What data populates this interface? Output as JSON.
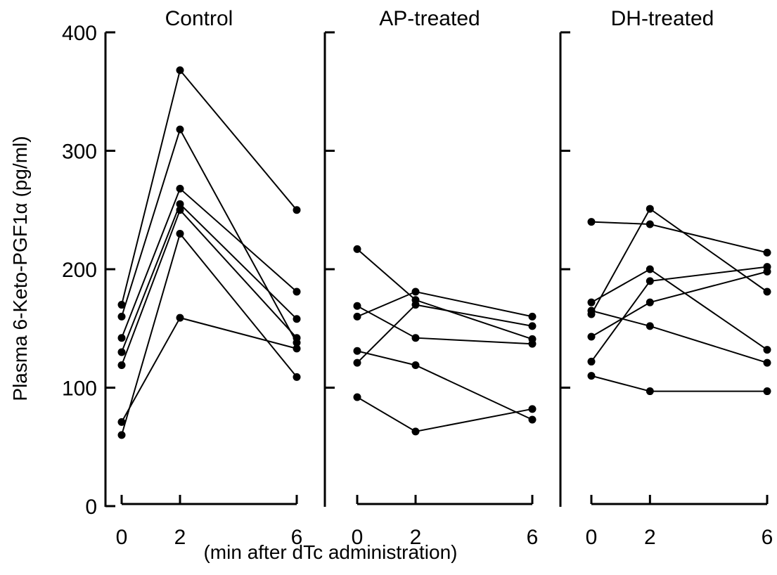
{
  "chart_data": [
    {
      "type": "line",
      "title": "Control",
      "x": [
        0,
        2,
        6
      ],
      "ylim": [
        0,
        400
      ],
      "ylabel": "Plasma 6-Keto-PGF1α (pg/ml)",
      "y_ticks": [
        "0",
        "100",
        "200",
        "300",
        "400"
      ],
      "x_ticks": [
        "0",
        "2",
        "6"
      ],
      "series": [
        {
          "values": [
            170,
            368,
            250
          ]
        },
        {
          "values": [
            160,
            318,
            138
          ]
        },
        {
          "values": [
            142,
            268,
            181
          ]
        },
        {
          "values": [
            130,
            255,
            158
          ]
        },
        {
          "values": [
            119,
            250,
            142
          ]
        },
        {
          "values": [
            60,
            230,
            109
          ]
        },
        {
          "values": [
            71,
            159,
            133
          ]
        }
      ]
    },
    {
      "type": "line",
      "title": "AP-treated",
      "x": [
        0,
        2,
        6
      ],
      "ylim": [
        0,
        400
      ],
      "x_ticks": [
        "0",
        "2",
        "6"
      ],
      "series": [
        {
          "values": [
            217,
            174,
            141
          ]
        },
        {
          "values": [
            169,
            142,
            137
          ]
        },
        {
          "values": [
            160,
            181,
            160
          ]
        },
        {
          "values": [
            121,
            170,
            152
          ]
        },
        {
          "values": [
            131,
            119,
            73
          ]
        },
        {
          "values": [
            92,
            63,
            82
          ]
        }
      ]
    },
    {
      "type": "line",
      "title": "DH-treated",
      "x": [
        0,
        2,
        6
      ],
      "ylim": [
        0,
        400
      ],
      "x_ticks": [
        "0",
        "2",
        "6"
      ],
      "series": [
        {
          "values": [
            240,
            238,
            214
          ]
        },
        {
          "values": [
            172,
            200,
            132
          ]
        },
        {
          "values": [
            165,
            152,
            121
          ]
        },
        {
          "values": [
            162,
            251,
            181
          ]
        },
        {
          "values": [
            143,
            172,
            198
          ]
        },
        {
          "values": [
            122,
            190,
            202
          ]
        },
        {
          "values": [
            110,
            97,
            97
          ]
        }
      ]
    }
  ],
  "footer": {
    "xlabel": "(min after dTc administration)"
  }
}
